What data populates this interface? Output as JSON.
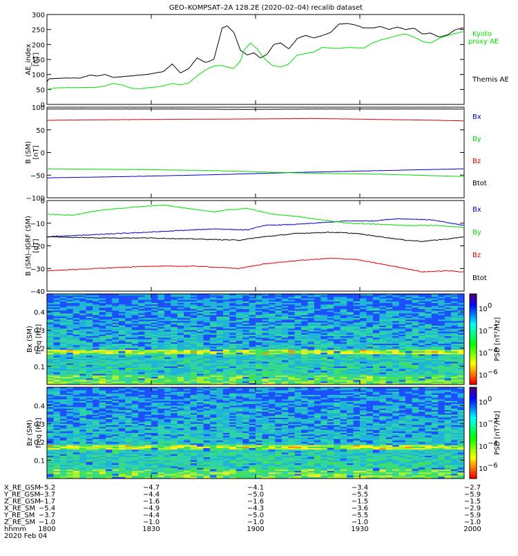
{
  "title": "GEO–KOMPSAT–2A 128.2E (2020–02–04) recalib dataset",
  "colors": {
    "black": "#000000",
    "green": "#00e000",
    "blue": "#0000cc",
    "red": "#dd0000"
  },
  "chart_data": [
    {
      "type": "line",
      "ylabel": [
        "AE_index",
        "[nT]"
      ],
      "ylim": [
        0,
        300
      ],
      "yticks": [
        0,
        50,
        100,
        150,
        200,
        250,
        300
      ],
      "x": [
        0,
        0.5,
        1,
        1.25,
        1.5,
        1.75,
        1.9,
        2
      ],
      "series": [
        {
          "name": "Themis AE",
          "color": "#000000",
          "values": [
            [
              0,
              75
            ],
            [
              1,
              85
            ],
            [
              10,
              88
            ],
            [
              20,
              88
            ],
            [
              26,
              98
            ],
            [
              30,
              95
            ],
            [
              35,
              100
            ],
            [
              40,
              90
            ],
            [
              50,
              95
            ],
            [
              60,
              100
            ],
            [
              70,
              110
            ],
            [
              75,
              135
            ],
            [
              80,
              105
            ],
            [
              85,
              120
            ],
            [
              90,
              155
            ],
            [
              95,
              140
            ],
            [
              100,
              150
            ],
            [
              105,
              255
            ],
            [
              108,
              262
            ],
            [
              112,
              240
            ],
            [
              116,
              180
            ],
            [
              120,
              165
            ],
            [
              124,
              172
            ],
            [
              128,
              155
            ],
            [
              132,
              168
            ],
            [
              136,
              200
            ],
            [
              140,
              205
            ],
            [
              145,
              185
            ],
            [
              150,
              220
            ],
            [
              155,
              230
            ],
            [
              160,
              222
            ],
            [
              165,
              230
            ],
            [
              170,
              240
            ],
            [
              175,
              268
            ],
            [
              180,
              270
            ],
            [
              185,
              265
            ],
            [
              190,
              255
            ],
            [
              195,
              255
            ],
            [
              200,
              260
            ],
            [
              205,
              250
            ],
            [
              210,
              258
            ],
            [
              215,
              250
            ],
            [
              220,
              255
            ],
            [
              225,
              235
            ],
            [
              230,
              238
            ],
            [
              235,
              225
            ],
            [
              240,
              232
            ],
            [
              245,
              250
            ],
            [
              250,
              256
            ]
          ]
        },
        {
          "name": "Kyoto proxy AE",
          "color": "#00e000",
          "values": [
            [
              0,
              50
            ],
            [
              5,
              55
            ],
            [
              15,
              56
            ],
            [
              30,
              57
            ],
            [
              35,
              62
            ],
            [
              40,
              70
            ],
            [
              45,
              65
            ],
            [
              50,
              55
            ],
            [
              55,
              52
            ],
            [
              60,
              55
            ],
            [
              65,
              58
            ],
            [
              70,
              62
            ],
            [
              75,
              70
            ],
            [
              80,
              65
            ],
            [
              85,
              72
            ],
            [
              90,
              95
            ],
            [
              95,
              115
            ],
            [
              100,
              128
            ],
            [
              104,
              130
            ],
            [
              108,
              125
            ],
            [
              112,
              120
            ],
            [
              116,
              145
            ],
            [
              118,
              180
            ],
            [
              122,
              205
            ],
            [
              126,
              185
            ],
            [
              130,
              155
            ],
            [
              135,
              130
            ],
            [
              140,
              125
            ],
            [
              145,
              135
            ],
            [
              150,
              165
            ],
            [
              155,
              170
            ],
            [
              160,
              175
            ],
            [
              165,
              190
            ],
            [
              170,
              188
            ],
            [
              175,
              187
            ],
            [
              180,
              190
            ],
            [
              190,
              188
            ],
            [
              195,
              205
            ],
            [
              200,
              215
            ],
            [
              205,
              222
            ],
            [
              210,
              230
            ],
            [
              215,
              235
            ],
            [
              220,
              225
            ],
            [
              225,
              210
            ],
            [
              230,
              205
            ],
            [
              235,
              220
            ],
            [
              240,
              230
            ],
            [
              250,
              244
            ]
          ]
        }
      ],
      "legend": [
        "Kyoto proxy AE",
        "Themis AE"
      ]
    },
    {
      "type": "line",
      "ylabel": [
        "B (SM)",
        "[nT]"
      ],
      "ylim": [
        -100,
        100
      ],
      "yticks": [
        -100,
        -50,
        0,
        50,
        100
      ],
      "series": [
        {
          "name": "Bx",
          "color": "#0000cc",
          "values": [
            [
              0,
              -56
            ],
            [
              50,
              -53
            ],
            [
              100,
              -49
            ],
            [
              130,
              -46
            ],
            [
              150,
              -44
            ],
            [
              200,
              -40
            ],
            [
              250,
              -36
            ]
          ]
        },
        {
          "name": "By",
          "color": "#00e000",
          "values": [
            [
              0,
              -36
            ],
            [
              60,
              -38
            ],
            [
              100,
              -40
            ],
            [
              150,
              -45
            ],
            [
              200,
              -48
            ],
            [
              230,
              -51
            ],
            [
              250,
              -53
            ]
          ]
        },
        {
          "name": "Bz",
          "color": "#dd0000",
          "values": [
            [
              0,
              71
            ],
            [
              60,
              73
            ],
            [
              120,
              74
            ],
            [
              160,
              75
            ],
            [
              200,
              73
            ],
            [
              250,
              70
            ]
          ]
        },
        {
          "name": "Btot",
          "color": "#000000",
          "values": [
            [
              0,
              96
            ],
            [
              80,
              96
            ],
            [
              120,
              95
            ],
            [
              160,
              96
            ],
            [
              250,
              96
            ]
          ]
        }
      ],
      "legend": [
        "Bx",
        "By",
        "Bz",
        "Btot"
      ]
    },
    {
      "type": "line",
      "ylabel": [
        "B (SM)–IGRF (SM)",
        "[nT]"
      ],
      "ylim": [
        -40,
        0
      ],
      "yticks": [
        -40,
        -30,
        -20,
        -10,
        0
      ],
      "series": [
        {
          "name": "Bx",
          "color": "#0000cc",
          "values": [
            [
              0,
              -16
            ],
            [
              30,
              -15
            ],
            [
              60,
              -14
            ],
            [
              100,
              -12.5
            ],
            [
              120,
              -13
            ],
            [
              130,
              -11
            ],
            [
              150,
              -10.5
            ],
            [
              170,
              -9.5
            ],
            [
              180,
              -9
            ],
            [
              195,
              -9
            ],
            [
              210,
              -8
            ],
            [
              230,
              -8.5
            ],
            [
              250,
              -11
            ]
          ]
        },
        {
          "name": "By",
          "color": "#00e000",
          "values": [
            [
              0,
              -6
            ],
            [
              15,
              -6.5
            ],
            [
              30,
              -4.5
            ],
            [
              50,
              -3
            ],
            [
              70,
              -2
            ],
            [
              85,
              -3.5
            ],
            [
              100,
              -5
            ],
            [
              110,
              -4
            ],
            [
              120,
              -3.5
            ],
            [
              135,
              -6
            ],
            [
              150,
              -7
            ],
            [
              165,
              -8.5
            ],
            [
              180,
              -10
            ],
            [
              200,
              -10.5
            ],
            [
              215,
              -11
            ],
            [
              235,
              -11
            ],
            [
              250,
              -12
            ]
          ]
        },
        {
          "name": "Bz",
          "color": "#dd0000",
          "values": [
            [
              0,
              -31
            ],
            [
              30,
              -30
            ],
            [
              60,
              -29
            ],
            [
              90,
              -29
            ],
            [
              115,
              -30
            ],
            [
              130,
              -28
            ],
            [
              150,
              -26.5
            ],
            [
              170,
              -25.5
            ],
            [
              185,
              -26
            ],
            [
              200,
              -28
            ],
            [
              215,
              -30
            ],
            [
              225,
              -31.5
            ],
            [
              240,
              -31
            ],
            [
              250,
              -31.5
            ]
          ]
        },
        {
          "name": "Btot",
          "color": "#000000",
          "values": [
            [
              0,
              -16
            ],
            [
              30,
              -16.5
            ],
            [
              60,
              -16.5
            ],
            [
              90,
              -17
            ],
            [
              115,
              -17.5
            ],
            [
              130,
              -16
            ],
            [
              150,
              -14.5
            ],
            [
              170,
              -14
            ],
            [
              185,
              -14.5
            ],
            [
              200,
              -16
            ],
            [
              215,
              -17.5
            ],
            [
              225,
              -18
            ],
            [
              240,
              -17
            ],
            [
              250,
              -16
            ]
          ]
        }
      ],
      "legend": [
        "Bx",
        "By",
        "Bz",
        "Btot"
      ]
    },
    {
      "type": "heatmap",
      "ylabel": [
        "Bx (SM)",
        "freq [Hz]"
      ],
      "ylim": [
        0,
        0.5
      ],
      "yticks": [
        0.1,
        0.2,
        0.3,
        0.4
      ],
      "colorbar": {
        "label": "PSD [nT^2/Hz]",
        "scale": "log",
        "ticks": [
          "10^0",
          "10^-2",
          "10^-4",
          "10^-6"
        ]
      }
    },
    {
      "type": "heatmap",
      "ylabel": [
        "Bz (SM)",
        "freq [Hz]"
      ],
      "ylim": [
        0,
        0.5
      ],
      "yticks": [
        0.1,
        0.2,
        0.3,
        0.4
      ],
      "colorbar": {
        "label": "PSD [nT^2/Hz]",
        "scale": "log",
        "ticks": [
          "10^0",
          "10^-2",
          "10^-4",
          "10^-6"
        ]
      }
    }
  ],
  "ephemeris": {
    "labels": [
      "X_RE_GSM",
      "Y_RE_GSM",
      "Z_RE_GSM",
      "X_RE_SM",
      "Y_RE_SM",
      "Z_RE_SM",
      "hhmm"
    ],
    "columns": [
      [
        "−5.2",
        "−3.7",
        "−1.7",
        "−5.4",
        "−3.7",
        "−1.0",
        "1800"
      ],
      [
        "−4.7",
        "−4.4",
        "−1.6",
        "−4.9",
        "−4.4",
        "−1.0",
        "1830"
      ],
      [
        "−4.1",
        "−5.0",
        "−1.6",
        "−4.3",
        "−5.0",
        "−1.0",
        "1900"
      ],
      [
        "−3.4",
        "−5.5",
        "−1.5",
        "−3.6",
        "−5.5",
        "−1.0",
        "1930"
      ],
      [
        "−2.7",
        "−5.9",
        "−1.5",
        "−2.9",
        "−5.9",
        "−1.0",
        "2000"
      ]
    ],
    "date": "2020 Feb 04"
  },
  "legend_text": {
    "ae": [
      "Kyoto",
      "proxy AE",
      "Themis AE"
    ],
    "b": [
      "Bx",
      "By",
      "Bz",
      "Btot"
    ],
    "psd_label": "PSD [nT²/Hz]",
    "cb_ticks": [
      "10",
      "10",
      "10",
      "10"
    ],
    "cb_exps": [
      "0",
      "−2",
      "−4",
      "−6"
    ]
  }
}
